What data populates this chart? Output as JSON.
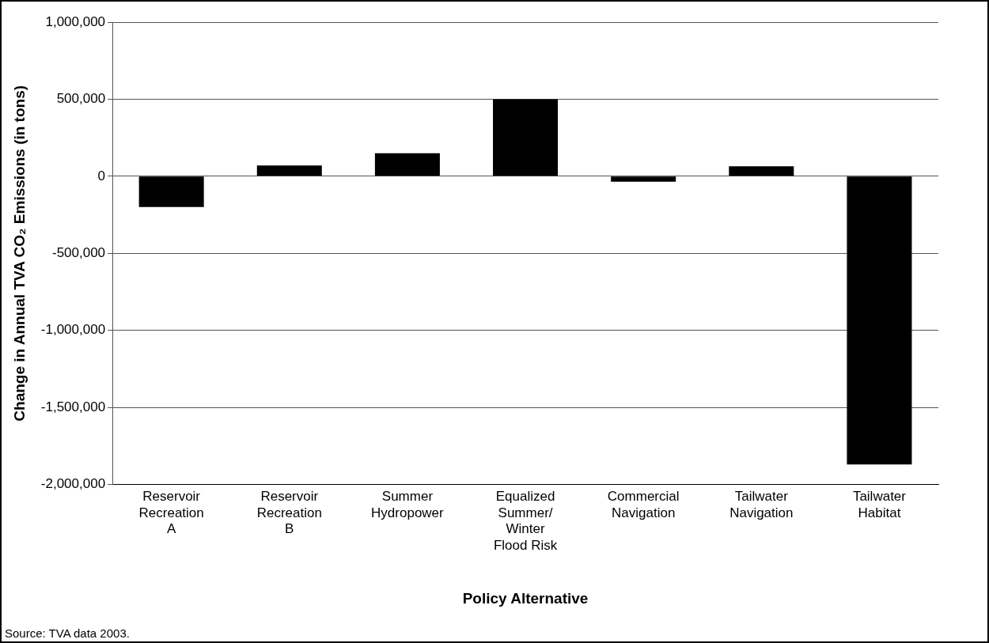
{
  "chart_data": {
    "type": "bar",
    "xlabel": "Policy Alternative",
    "ylabel": "Change in Annual TVA CO₂ Emissions (in tons)",
    "categories": [
      "Reservoir\nRecreation\nA",
      "Reservoir\nRecreation\nB",
      "Summer\nHydropower",
      "Equalized\nSummer/\nWinter\nFlood Risk",
      "Commercial\nNavigation",
      "Tailwater\nNavigation",
      "Tailwater\nHabitat"
    ],
    "values": [
      -200000,
      70000,
      150000,
      500000,
      -35000,
      65000,
      -1870000
    ],
    "color": "#000000",
    "ylim": [
      -2000000,
      1000000
    ],
    "yticks": [
      {
        "value": -2000000,
        "label": "-2,000,000"
      },
      {
        "value": -1500000,
        "label": "-1,500,000"
      },
      {
        "value": -1000000,
        "label": "-1,000,000"
      },
      {
        "value": -500000,
        "label": "-500,000"
      },
      0,
      {
        "value": 500000,
        "label": "500,000"
      },
      {
        "value": 1000000,
        "label": "1,000,000"
      }
    ],
    "grid": "y",
    "annotations": [
      "Source:  TVA data 2003."
    ]
  }
}
